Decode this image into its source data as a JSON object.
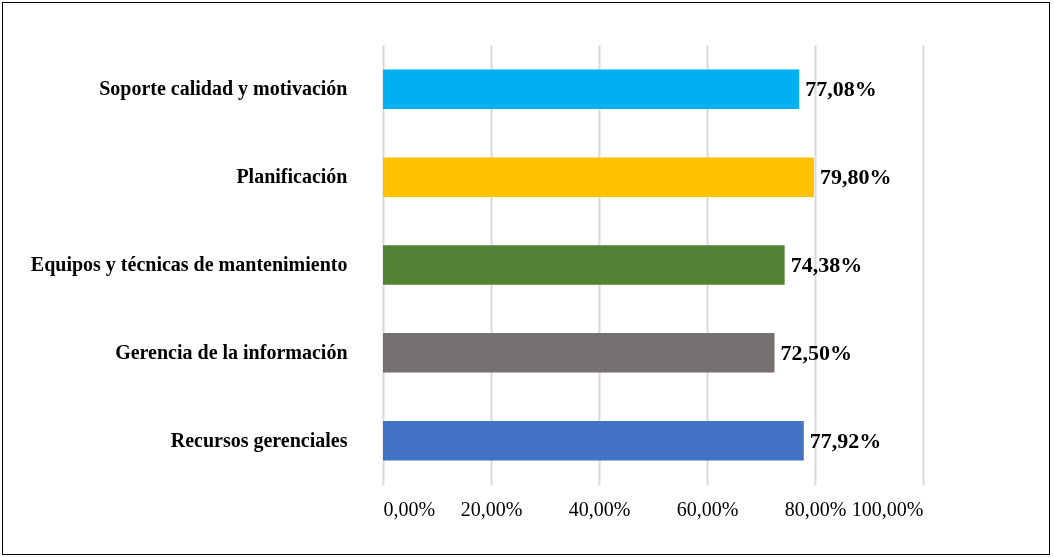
{
  "chart_data": {
    "type": "bar",
    "orientation": "horizontal",
    "categories": [
      "Soporte calidad y motivación",
      "Planificación",
      "Equipos y técnicas de mantenimiento",
      "Gerencia de la información",
      "Recursos gerenciales"
    ],
    "values": [
      77.08,
      79.8,
      74.38,
      72.5,
      77.92
    ],
    "colors": [
      "#00b0f0",
      "#ffc000",
      "#548235",
      "#767171",
      "#4472c4"
    ],
    "value_labels": [
      "77,08%",
      "79,80%",
      "74,38%",
      "72,50%",
      "77,92%"
    ],
    "xlim": [
      0,
      100
    ],
    "xticks": [
      {
        "value": 0,
        "label": "0,00%"
      },
      {
        "value": 20,
        "label": "20,00%"
      },
      {
        "value": 40,
        "label": "40,00%"
      },
      {
        "value": 60,
        "label": "60,00%"
      },
      {
        "value": 80,
        "label": "80,00%"
      },
      {
        "value": 100,
        "label": "100,00%"
      }
    ],
    "grid": "x"
  }
}
